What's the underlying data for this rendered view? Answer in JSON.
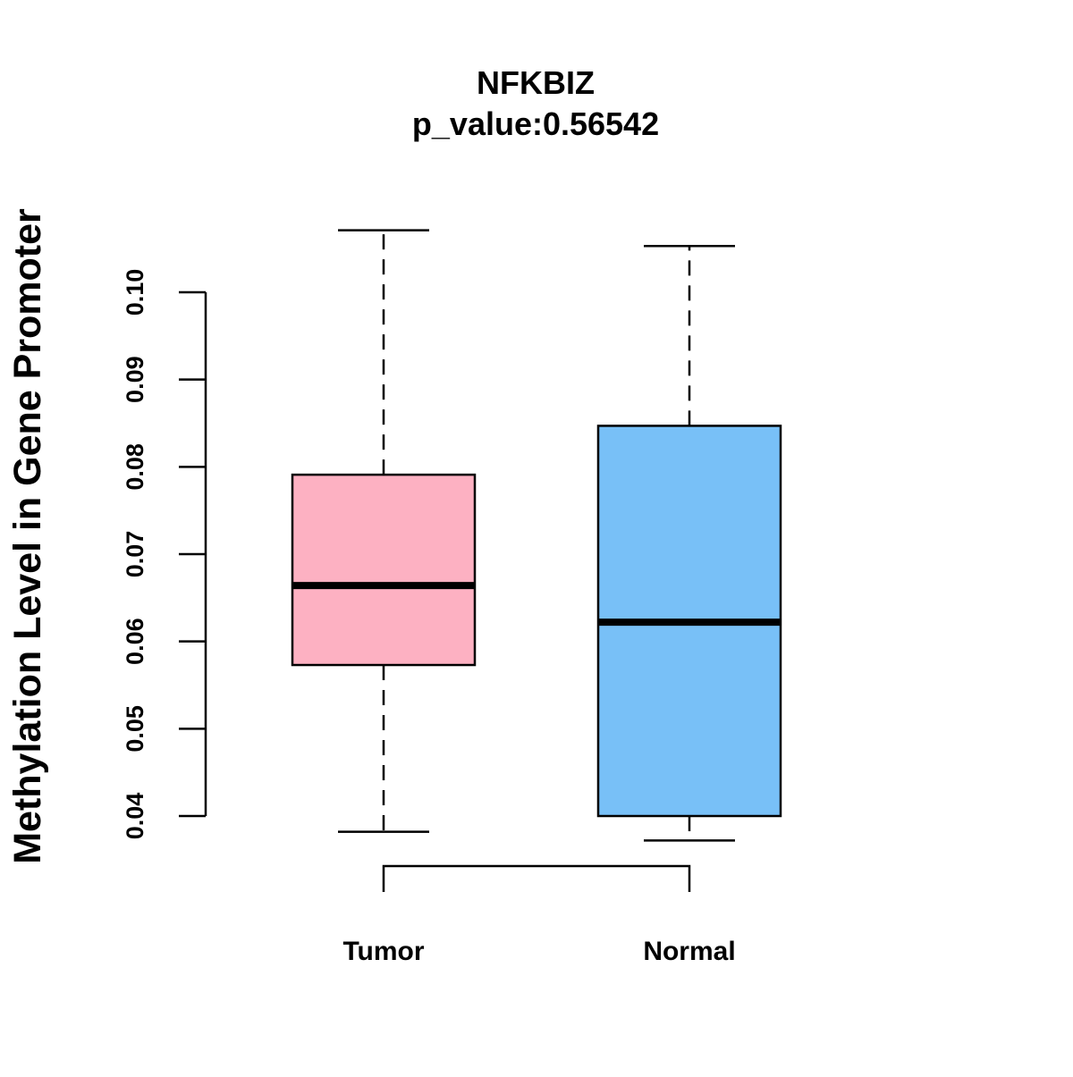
{
  "chart_data": {
    "type": "boxplot",
    "title": "NFKBIZ",
    "subtitle": "p_value:0.56542",
    "xlabel": "",
    "ylabel": "Methylation Level in Gene Promoter",
    "ylim": [
      0.04,
      0.1
    ],
    "yticks": [
      0.04,
      0.05,
      0.06,
      0.07,
      0.08,
      0.09,
      0.1
    ],
    "ytick_labels": [
      "0.04",
      "0.05",
      "0.06",
      "0.07",
      "0.08",
      "0.09",
      "0.10"
    ],
    "categories": [
      "Tumor",
      "Normal"
    ],
    "series": [
      {
        "name": "Tumor",
        "color": "#FDB1C2",
        "whisker_low": 0.0382,
        "q1": 0.0573,
        "median": 0.0664,
        "q3": 0.0791,
        "whisker_high": 0.1071
      },
      {
        "name": "Normal",
        "color": "#78C0F7",
        "whisker_low": 0.0372,
        "q1": 0.04,
        "median": 0.0622,
        "q3": 0.0847,
        "whisker_high": 0.1053
      }
    ],
    "comparison_bracket": [
      "Tumor",
      "Normal"
    ],
    "grid": false,
    "legend": "none"
  }
}
